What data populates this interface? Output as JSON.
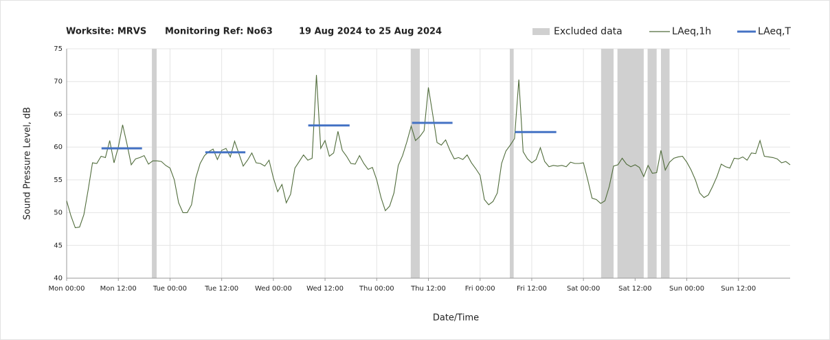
{
  "chart_data": {
    "type": "line",
    "title": [
      "Worksite: MRVS",
      "Monitoring Ref: No63",
      "19 Aug 2024 to 25 Aug 2024"
    ],
    "x_label": "Date/Time",
    "y_label": "Sound Pressure Level, dB",
    "xlim": [
      0,
      168
    ],
    "xticks": [
      {
        "value": 0,
        "label": "Mon 00:00"
      },
      {
        "value": 12,
        "label": "Mon 12:00"
      },
      {
        "value": 24,
        "label": "Tue 00:00"
      },
      {
        "value": 36,
        "label": "Tue 12:00"
      },
      {
        "value": 48,
        "label": "Wed 00:00"
      },
      {
        "value": 60,
        "label": "Wed 12:00"
      },
      {
        "value": 72,
        "label": "Thu 00:00"
      },
      {
        "value": 84,
        "label": "Thu 12:00"
      },
      {
        "value": 96,
        "label": "Fri 00:00"
      },
      {
        "value": 108,
        "label": "Fri 12:00"
      },
      {
        "value": 120,
        "label": "Sat 00:00"
      },
      {
        "value": 132,
        "label": "Sat 12:00"
      },
      {
        "value": 144,
        "label": "Sun 00:00"
      },
      {
        "value": 156,
        "label": "Sun 12:00"
      }
    ],
    "ylim": [
      40,
      75
    ],
    "yticks": [
      40,
      45,
      50,
      55,
      60,
      65,
      70,
      75
    ],
    "grid": true,
    "legend": "top-right",
    "excluded": {
      "name": "Excluded data",
      "color": "#d0d0d0",
      "ranges": [
        [
          19.8,
          20.9
        ],
        [
          79.9,
          82
        ],
        [
          102.9,
          103.8
        ],
        [
          124.1,
          127
        ],
        [
          127.9,
          134
        ],
        [
          134.9,
          137
        ],
        [
          138,
          140
        ]
      ]
    },
    "x": [
      0,
      1,
      2,
      3,
      4,
      5,
      6,
      7,
      8,
      9,
      10,
      11,
      12,
      13,
      14,
      15,
      16,
      17,
      18,
      19,
      20,
      21,
      22,
      23,
      24,
      25,
      26,
      27,
      28,
      29,
      30,
      31,
      32,
      33,
      34,
      35,
      36,
      37,
      38,
      39,
      40,
      41,
      42,
      43,
      44,
      45,
      46,
      47,
      48,
      49,
      50,
      51,
      52,
      53,
      54,
      55,
      56,
      57,
      58,
      59,
      60,
      61,
      62,
      63,
      64,
      65,
      66,
      67,
      68,
      69,
      70,
      71,
      72,
      73,
      74,
      75,
      76,
      77,
      78,
      79,
      80,
      81,
      82,
      83,
      84,
      85,
      86,
      87,
      88,
      89,
      90,
      91,
      92,
      93,
      94,
      95,
      96,
      97,
      98,
      99,
      100,
      101,
      102,
      103,
      104,
      105,
      106,
      107,
      108,
      109,
      110,
      111,
      112,
      113,
      114,
      115,
      116,
      117,
      118,
      119,
      120,
      121,
      122,
      123,
      124,
      125,
      126,
      127,
      128,
      129,
      130,
      131,
      132,
      133,
      134,
      135,
      136,
      137,
      138,
      139,
      140,
      141,
      142,
      143,
      144,
      145,
      146,
      147,
      148,
      149,
      150,
      151,
      152,
      153,
      154,
      155,
      156,
      157,
      158,
      159,
      160,
      161,
      162,
      163,
      164,
      165,
      166,
      167,
      168
    ],
    "series": [
      {
        "name": "LAeq,1h",
        "color": "#4f6b3a",
        "values": [
          51.8,
          49.5,
          47.7,
          47.8,
          49.7,
          53.5,
          57.6,
          57.5,
          58.6,
          58.4,
          61,
          57.6,
          60,
          63.4,
          60.5,
          57.3,
          58.2,
          58.4,
          58.7,
          57.4,
          57.9,
          57.9,
          57.8,
          57.2,
          56.8,
          55,
          51.5,
          50,
          50,
          51.2,
          55.3,
          57.5,
          58.7,
          59.3,
          59.7,
          58.1,
          59.5,
          59.8,
          58.5,
          60.9,
          59,
          57.1,
          58,
          59.1,
          57.6,
          57.5,
          57.1,
          58,
          55.3,
          53.2,
          54.3,
          51.5,
          52.8,
          56.8,
          57.8,
          58.8,
          58,
          58.3,
          71,
          59.8,
          61,
          58.6,
          59.1,
          62.4,
          59.5,
          58.6,
          57.5,
          57.4,
          58.7,
          57.5,
          56.6,
          56.9,
          55,
          52.3,
          50.3,
          51,
          53,
          57.2,
          58.7,
          60.8,
          63.2,
          61,
          61.6,
          62.5,
          69.1,
          65,
          60.7,
          60.3,
          61.1,
          59.5,
          58.2,
          58.4,
          58.1,
          58.8,
          57.6,
          56.7,
          55.7,
          52,
          51.2,
          51.7,
          53,
          57.5,
          59.4,
          60.3,
          61.3,
          70.3,
          59.3,
          58.2,
          57.6,
          58.1,
          59.9,
          57.8,
          57,
          57.2,
          57.1,
          57.2,
          57,
          57.7,
          57.5,
          57.5,
          57.6,
          55,
          52.2,
          52,
          51.4,
          51.8,
          54,
          57.1,
          57.3,
          58.3,
          57.4,
          57,
          57.3,
          56.9,
          55.5,
          57.2,
          56,
          56.1,
          59.5,
          56.5,
          57.7,
          58.3,
          58.5,
          58.6,
          57.7,
          56.5,
          55,
          53,
          52.3,
          52.7,
          54,
          55.5,
          57.4,
          57,
          56.8,
          58.3,
          58.2,
          58.5,
          58,
          59.1,
          59,
          61,
          58.6,
          58.5,
          58.4,
          58.2,
          57.6,
          57.8,
          57.3
        ]
      },
      {
        "name": "LAeq,T",
        "color": "#4472c4",
        "segments": [
          {
            "x": [
              8.1,
              17.5
            ],
            "value": 59.8
          },
          {
            "x": [
              32.2,
              41.5
            ],
            "value": 59.2
          },
          {
            "x": [
              56.1,
              65.7
            ],
            "value": 63.3
          },
          {
            "x": [
              80.2,
              89.6
            ],
            "value": 63.7
          },
          {
            "x": [
              104.1,
              113.7
            ],
            "value": 62.3
          }
        ]
      }
    ]
  }
}
